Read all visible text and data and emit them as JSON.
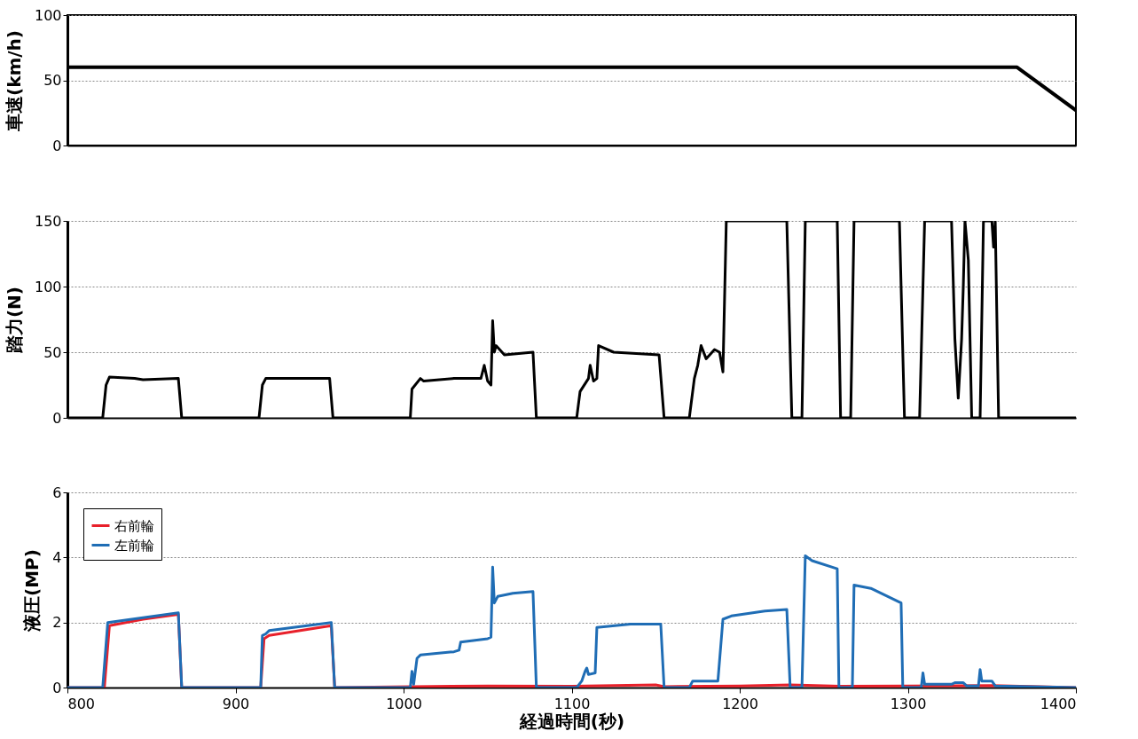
{
  "chart_data": [
    {
      "type": "line",
      "ylabel": "車速(km/h)",
      "xlim": [
        800,
        1400
      ],
      "xticks": [
        800,
        900,
        1000,
        1100,
        1200,
        1300,
        1400
      ],
      "ylim": [
        0,
        100
      ],
      "yticks": [
        0,
        50,
        100
      ],
      "grid": "y",
      "tick_labels": "y",
      "series": [
        {
          "color": "#000000",
          "x": [
            800,
            1365,
            1400
          ],
          "values": [
            60,
            60,
            27
          ]
        }
      ]
    },
    {
      "type": "line",
      "ylabel": "踏力(N)",
      "xlim": [
        800,
        1400
      ],
      "xticks": [
        800,
        900,
        1000,
        1100,
        1200,
        1300,
        1400
      ],
      "ylim": [
        0,
        150
      ],
      "yticks": [
        0,
        50,
        100,
        150
      ],
      "grid": "y",
      "tick_labels": "y",
      "series": [
        {
          "color": "#000000",
          "x": [
            800,
            821,
            823,
            825,
            840,
            845,
            866,
            868,
            914,
            916,
            918,
            956,
            958,
            1004,
            1005,
            1010,
            1012,
            1030,
            1046,
            1048,
            1050,
            1052,
            1053,
            1054,
            1055,
            1060,
            1077,
            1079,
            1103,
            1105,
            1110,
            1111,
            1113,
            1115,
            1116,
            1125,
            1152,
            1155,
            1170,
            1173,
            1175,
            1177,
            1180,
            1185,
            1188,
            1190,
            1192,
            1228,
            1231,
            1237,
            1239,
            1258,
            1260,
            1266,
            1268,
            1295,
            1298,
            1307,
            1310,
            1326,
            1328,
            1330,
            1332,
            1333,
            1334,
            1336,
            1338,
            1343,
            1345,
            1350,
            1351,
            1352,
            1354,
            1400
          ],
          "values": [
            0,
            0,
            25,
            31,
            30,
            29,
            30,
            0,
            0,
            25,
            30,
            30,
            0,
            0,
            22,
            30,
            28,
            30,
            30,
            40,
            28,
            25,
            74,
            50,
            55,
            48,
            50,
            0,
            0,
            20,
            30,
            40,
            28,
            30,
            55,
            50,
            48,
            0,
            0,
            30,
            40,
            55,
            45,
            52,
            50,
            35,
            150,
            150,
            0,
            0,
            150,
            150,
            0,
            0,
            150,
            150,
            0,
            0,
            150,
            150,
            60,
            15,
            60,
            100,
            150,
            120,
            0,
            0,
            150,
            150,
            130,
            150,
            0,
            0
          ]
        }
      ]
    },
    {
      "type": "line",
      "ylabel": "液圧(MP)",
      "xlabel": "経過時間(秒)",
      "xlim": [
        800,
        1400
      ],
      "xticks": [
        800,
        900,
        1000,
        1100,
        1200,
        1300,
        1400
      ],
      "ylim": [
        0,
        6
      ],
      "yticks": [
        0,
        2,
        4,
        6
      ],
      "grid": "y",
      "legend": "top left",
      "series": [
        {
          "name": "右前輪",
          "color": "#e8202a",
          "x": [
            800,
            822,
            825,
            845,
            866,
            868,
            915,
            917,
            920,
            957,
            959,
            1005,
            1050,
            1100,
            1150,
            1155,
            1200,
            1230,
            1260,
            1300,
            1350,
            1400
          ],
          "values": [
            0,
            0,
            1.9,
            2.1,
            2.25,
            0,
            0,
            1.5,
            1.6,
            1.9,
            0,
            0.03,
            0.05,
            0.04,
            0.08,
            0.03,
            0.05,
            0.08,
            0.04,
            0.05,
            0.06,
            0
          ]
        },
        {
          "name": "左前輪",
          "color": "#1f6db5",
          "x": [
            800,
            821,
            824,
            845,
            866,
            868,
            915,
            916,
            918,
            920,
            957,
            959,
            1004,
            1005,
            1006,
            1008,
            1010,
            1030,
            1033,
            1034,
            1050,
            1052,
            1053,
            1054,
            1056,
            1065,
            1077,
            1079,
            1103,
            1106,
            1108,
            1109,
            1110,
            1114,
            1115,
            1135,
            1153,
            1155,
            1170,
            1172,
            1187,
            1190,
            1195,
            1215,
            1228,
            1230,
            1237,
            1239,
            1243,
            1258,
            1259,
            1267,
            1268,
            1278,
            1296,
            1297,
            1308,
            1309,
            1310,
            1326,
            1328,
            1333,
            1335,
            1342,
            1343,
            1344,
            1350,
            1352,
            1380,
            1400
          ],
          "values": [
            0,
            0,
            2.0,
            2.15,
            2.3,
            0,
            0,
            1.6,
            1.65,
            1.75,
            2.0,
            0,
            0,
            0.5,
            0.1,
            0.9,
            1.0,
            1.1,
            1.15,
            1.4,
            1.5,
            1.55,
            3.7,
            2.6,
            2.8,
            2.9,
            2.95,
            0,
            0,
            0.2,
            0.5,
            0.6,
            0.4,
            0.45,
            1.85,
            1.95,
            1.95,
            0,
            0,
            0.2,
            0.2,
            2.1,
            2.2,
            2.35,
            2.4,
            0,
            0,
            4.05,
            3.9,
            3.65,
            0,
            0,
            3.15,
            3.05,
            2.6,
            0,
            0,
            0.45,
            0.1,
            0.1,
            0.15,
            0.15,
            0.05,
            0.05,
            0.55,
            0.2,
            0.2,
            0.05,
            0.02,
            0
          ]
        }
      ]
    }
  ]
}
